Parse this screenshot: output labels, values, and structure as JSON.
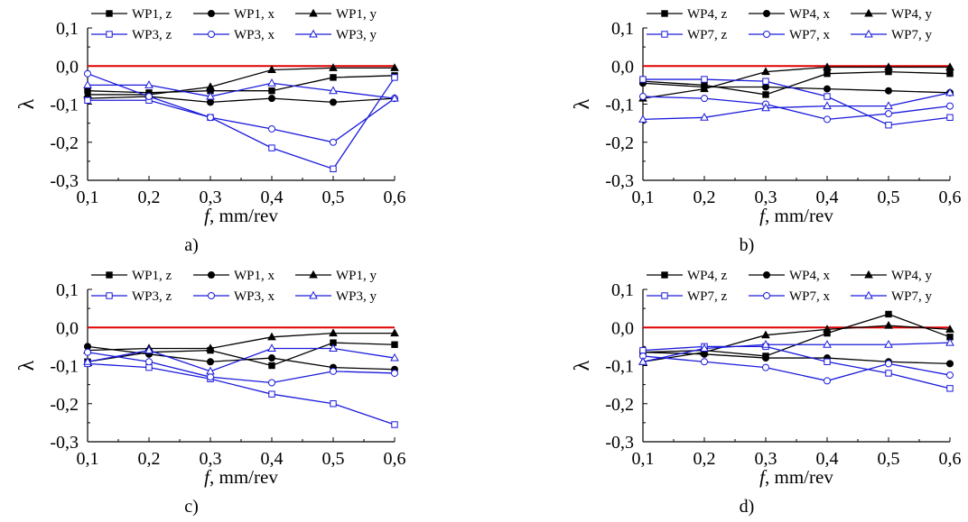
{
  "colors": {
    "black_series": "#000000",
    "blue_series": "#1a1adc",
    "reference_line": "#e00000",
    "axis": "#000000"
  },
  "chart_data": [
    {
      "type": "line",
      "panel_label": "a)",
      "xlabel_italic": "f",
      "xlabel_rest": ", mm/rev",
      "ylabel": "λ",
      "xlim": [
        0.1,
        0.6
      ],
      "ylim": [
        -0.3,
        0.1
      ],
      "x": [
        0.1,
        0.2,
        0.3,
        0.4,
        0.5,
        0.6
      ],
      "x_tick_labels": [
        "0,1",
        "0,2",
        "0,3",
        "0,4",
        "0,5",
        "0,6"
      ],
      "y_ticks": [
        0.1,
        0.0,
        -0.1,
        -0.2,
        -0.3
      ],
      "y_tick_labels": [
        "0,1",
        "0,0",
        "-0,1",
        "-0,2",
        "-0,3"
      ],
      "reference_line_y": 0.0,
      "legend": "top",
      "series": [
        {
          "name": "WP1, z",
          "color": "black",
          "marker": "square-filled",
          "values": [
            -0.065,
            -0.07,
            -0.065,
            -0.065,
            -0.03,
            -0.025
          ]
        },
        {
          "name": "WP1, x",
          "color": "black",
          "marker": "circle-filled",
          "values": [
            -0.085,
            -0.08,
            -0.095,
            -0.085,
            -0.095,
            -0.085
          ]
        },
        {
          "name": "WP1, y",
          "color": "black",
          "marker": "triangle-filled",
          "values": [
            -0.075,
            -0.075,
            -0.055,
            -0.01,
            -0.005,
            -0.005
          ]
        },
        {
          "name": "WP3, z",
          "color": "blue",
          "marker": "square-open",
          "values": [
            -0.09,
            -0.09,
            -0.135,
            -0.215,
            -0.27,
            -0.03
          ]
        },
        {
          "name": "WP3, x",
          "color": "blue",
          "marker": "circle-open",
          "values": [
            -0.02,
            -0.08,
            -0.135,
            -0.165,
            -0.2,
            -0.085
          ]
        },
        {
          "name": "WP3, y",
          "color": "blue",
          "marker": "triangle-open",
          "values": [
            -0.05,
            -0.05,
            -0.08,
            -0.045,
            -0.065,
            -0.085
          ]
        }
      ]
    },
    {
      "type": "line",
      "panel_label": "b)",
      "xlabel_italic": "f",
      "xlabel_rest": ", mm/rev",
      "ylabel": "λ",
      "xlim": [
        0.1,
        0.6
      ],
      "ylim": [
        -0.3,
        0.1
      ],
      "x": [
        0.1,
        0.2,
        0.3,
        0.4,
        0.5,
        0.6
      ],
      "x_tick_labels": [
        "0,1",
        "0,2",
        "0,3",
        "0,4",
        "0,5",
        "0,6"
      ],
      "y_ticks": [
        0.1,
        0.0,
        -0.1,
        -0.2,
        -0.3
      ],
      "y_tick_labels": [
        "0,1",
        "0,0",
        "-0,1",
        "-0,2",
        "-0,3"
      ],
      "reference_line_y": 0.0,
      "legend": "top",
      "series": [
        {
          "name": "WP4, z",
          "color": "black",
          "marker": "square-filled",
          "values": [
            -0.04,
            -0.05,
            -0.075,
            -0.02,
            -0.015,
            -0.02
          ]
        },
        {
          "name": "WP4, x",
          "color": "black",
          "marker": "circle-filled",
          "values": [
            -0.045,
            -0.055,
            -0.055,
            -0.06,
            -0.065,
            -0.07
          ]
        },
        {
          "name": "WP4, y",
          "color": "black",
          "marker": "triangle-filled",
          "values": [
            -0.085,
            -0.06,
            -0.015,
            -0.003,
            -0.003,
            -0.003
          ]
        },
        {
          "name": "WP7, z",
          "color": "blue",
          "marker": "square-open",
          "values": [
            -0.035,
            -0.035,
            -0.04,
            -0.08,
            -0.155,
            -0.135
          ]
        },
        {
          "name": "WP7, x",
          "color": "blue",
          "marker": "circle-open",
          "values": [
            -0.08,
            -0.085,
            -0.1,
            -0.14,
            -0.125,
            -0.105
          ]
        },
        {
          "name": "WP7, y",
          "color": "blue",
          "marker": "triangle-open",
          "values": [
            -0.14,
            -0.135,
            -0.11,
            -0.105,
            -0.105,
            -0.07
          ]
        }
      ]
    },
    {
      "type": "line",
      "panel_label": "c)",
      "xlabel_italic": "f",
      "xlabel_rest": ", mm/rev",
      "ylabel": "λ",
      "xlim": [
        0.1,
        0.6
      ],
      "ylim": [
        -0.3,
        0.1
      ],
      "x": [
        0.1,
        0.2,
        0.3,
        0.4,
        0.5,
        0.6
      ],
      "x_tick_labels": [
        "0,1",
        "0,2",
        "0,3",
        "0,4",
        "0,5",
        "0,6"
      ],
      "y_ticks": [
        0.1,
        0.0,
        -0.1,
        -0.2,
        -0.3
      ],
      "y_tick_labels": [
        "0,1",
        "0,0",
        "-0,1",
        "-0,2",
        "-0,3"
      ],
      "reference_line_y": 0.0,
      "legend": "top",
      "series": [
        {
          "name": "WP1, z",
          "color": "black",
          "marker": "square-filled",
          "values": [
            -0.09,
            -0.065,
            -0.06,
            -0.1,
            -0.04,
            -0.045
          ]
        },
        {
          "name": "WP1, x",
          "color": "black",
          "marker": "circle-filled",
          "values": [
            -0.05,
            -0.07,
            -0.09,
            -0.08,
            -0.105,
            -0.11
          ]
        },
        {
          "name": "WP1, y",
          "color": "black",
          "marker": "triangle-filled",
          "values": [
            -0.06,
            -0.055,
            -0.055,
            -0.025,
            -0.015,
            -0.015
          ]
        },
        {
          "name": "WP3, z",
          "color": "blue",
          "marker": "square-open",
          "values": [
            -0.095,
            -0.105,
            -0.135,
            -0.175,
            -0.2,
            -0.255
          ]
        },
        {
          "name": "WP3, x",
          "color": "blue",
          "marker": "circle-open",
          "values": [
            -0.065,
            -0.09,
            -0.13,
            -0.145,
            -0.115,
            -0.12
          ]
        },
        {
          "name": "WP3, y",
          "color": "blue",
          "marker": "triangle-open",
          "values": [
            -0.09,
            -0.06,
            -0.115,
            -0.055,
            -0.055,
            -0.08
          ]
        }
      ]
    },
    {
      "type": "line",
      "panel_label": "d)",
      "xlabel_italic": "f",
      "xlabel_rest": ", mm/rev",
      "ylabel": "λ",
      "xlim": [
        0.1,
        0.6
      ],
      "ylim": [
        -0.3,
        0.1
      ],
      "x": [
        0.1,
        0.2,
        0.3,
        0.4,
        0.5,
        0.6
      ],
      "x_tick_labels": [
        "0,1",
        "0,2",
        "0,3",
        "0,4",
        "0,5",
        "0,6"
      ],
      "y_ticks": [
        0.1,
        0.0,
        -0.1,
        -0.2,
        -0.3
      ],
      "y_tick_labels": [
        "0,1",
        "0,0",
        "-0,1",
        "-0,2",
        "-0,3"
      ],
      "reference_line_y": 0.0,
      "legend": "top",
      "series": [
        {
          "name": "WP4, z",
          "color": "black",
          "marker": "square-filled",
          "values": [
            -0.065,
            -0.06,
            -0.075,
            -0.015,
            0.035,
            -0.025
          ]
        },
        {
          "name": "WP4, x",
          "color": "black",
          "marker": "circle-filled",
          "values": [
            -0.065,
            -0.07,
            -0.08,
            -0.08,
            -0.09,
            -0.095
          ]
        },
        {
          "name": "WP4, y",
          "color": "black",
          "marker": "triangle-filled",
          "values": [
            -0.09,
            -0.065,
            -0.02,
            -0.005,
            0.005,
            -0.005
          ]
        },
        {
          "name": "WP7, z",
          "color": "blue",
          "marker": "square-open",
          "values": [
            -0.06,
            -0.05,
            -0.05,
            -0.09,
            -0.12,
            -0.16
          ]
        },
        {
          "name": "WP7, x",
          "color": "blue",
          "marker": "circle-open",
          "values": [
            -0.075,
            -0.09,
            -0.105,
            -0.14,
            -0.095,
            -0.125
          ]
        },
        {
          "name": "WP7, y",
          "color": "blue",
          "marker": "triangle-open",
          "values": [
            -0.09,
            -0.055,
            -0.045,
            -0.045,
            -0.045,
            -0.04
          ]
        }
      ]
    }
  ]
}
